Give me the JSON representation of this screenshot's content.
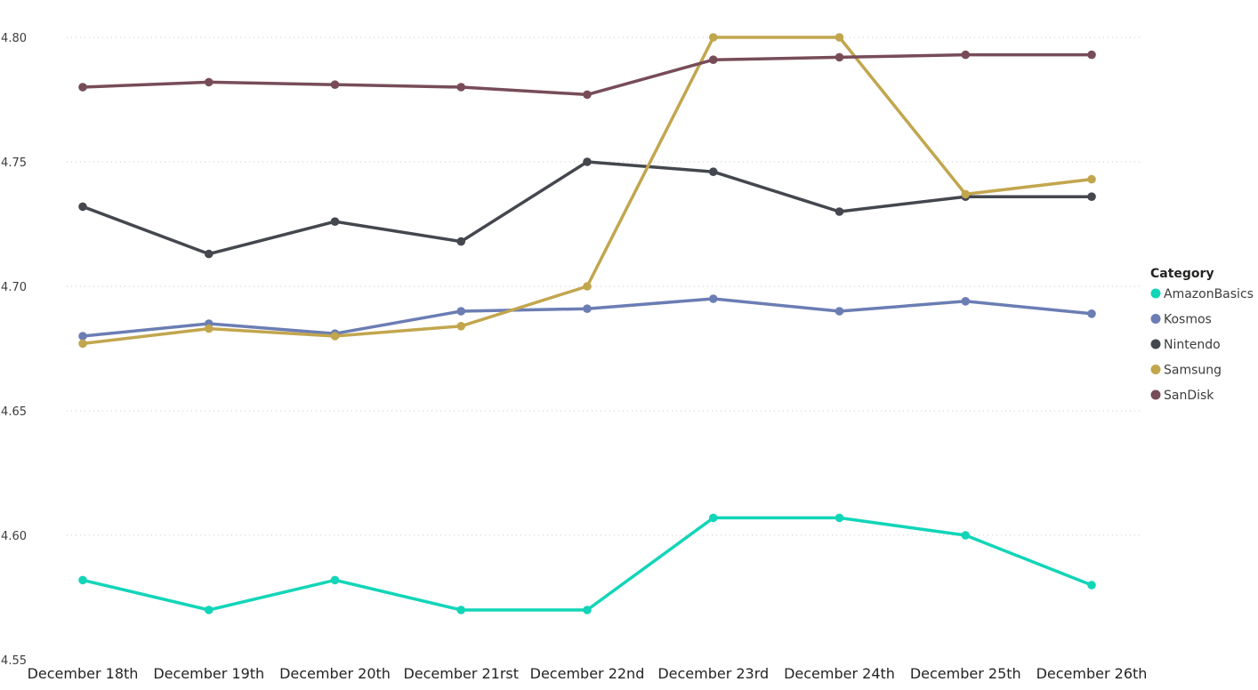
{
  "chart_data": {
    "type": "line",
    "x": [
      "December 18th",
      "December 19th",
      "December 20th",
      "December 21rst",
      "December 22nd",
      "December 23rd",
      "December 24th",
      "December 25th",
      "December 26th"
    ],
    "ylim": [
      4.55,
      4.8
    ],
    "yticks": [
      "4.55",
      "4.60",
      "4.65",
      "4.70",
      "4.75",
      "4.80"
    ],
    "grid": true,
    "legend_position": "right",
    "legend_title": "Category",
    "series": [
      {
        "name": "AmazonBasics",
        "color": "#12d5b8",
        "values": [
          4.582,
          4.57,
          4.582,
          4.57,
          4.57,
          4.607,
          4.607,
          4.6,
          4.58
        ]
      },
      {
        "name": "Kosmos",
        "color": "#6b7db3",
        "values": [
          4.68,
          4.685,
          4.681,
          4.69,
          4.691,
          4.695,
          4.69,
          4.694,
          4.689
        ]
      },
      {
        "name": "Nintendo",
        "color": "#44474e",
        "values": [
          4.732,
          4.713,
          4.726,
          4.718,
          4.75,
          4.746,
          4.73,
          4.736,
          4.736
        ]
      },
      {
        "name": "Samsung",
        "color": "#c2a64e",
        "values": [
          4.677,
          4.683,
          4.68,
          4.684,
          4.7,
          4.8,
          4.8,
          4.737,
          4.743
        ]
      },
      {
        "name": "SanDisk",
        "color": "#774c58",
        "values": [
          4.78,
          4.782,
          4.781,
          4.78,
          4.777,
          4.791,
          4.792,
          4.793,
          4.793
        ]
      }
    ]
  }
}
